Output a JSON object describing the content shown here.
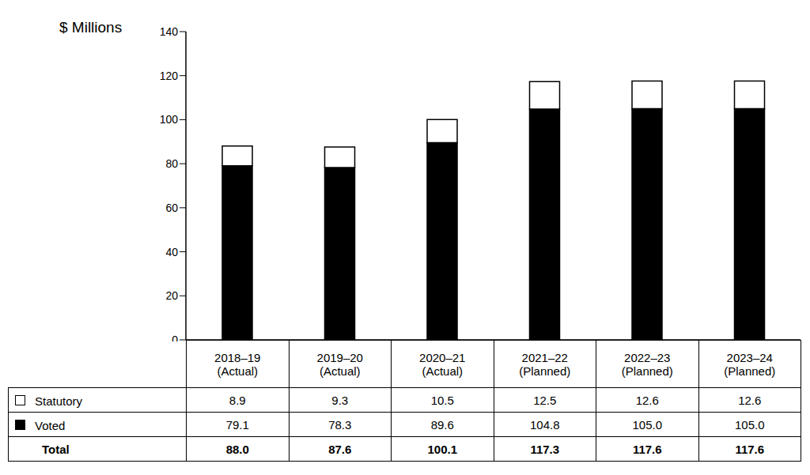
{
  "chart_data": {
    "type": "bar",
    "stacked": true,
    "y_label": "$ Millions",
    "categories": [
      "2018–19 (Actual)",
      "2019–20 (Actual)",
      "2020–21 (Actual)",
      "2021–22 (Planned)",
      "2022–23 (Planned)",
      "2023–24 (Planned)"
    ],
    "series": [
      {
        "name": "Statutory",
        "color": "#ffffff",
        "values": [
          8.9,
          9.3,
          10.5,
          12.5,
          12.6,
          12.6
        ]
      },
      {
        "name": "Voted",
        "color": "#000000",
        "values": [
          79.1,
          78.3,
          89.6,
          104.8,
          105.0,
          105.0
        ],
        "value_labels": [
          "79.1",
          "78.3",
          "89.6",
          "104.8",
          "105.0",
          "105.0"
        ]
      }
    ],
    "totals": {
      "name": "Total",
      "values": [
        88.0,
        87.6,
        100.1,
        117.3,
        117.6,
        117.6
      ],
      "value_labels": [
        "88.0",
        "87.6",
        "100.1",
        "117.3",
        "117.6",
        "117.6"
      ]
    },
    "ylim": [
      0,
      140
    ],
    "yticks": [
      0,
      20,
      40,
      60,
      80,
      100,
      120,
      140
    ],
    "grid": false
  }
}
